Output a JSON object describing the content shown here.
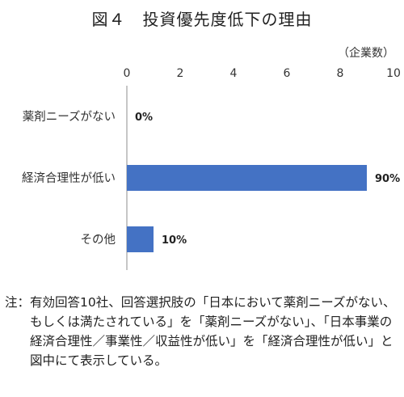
{
  "chart_data": {
    "type": "bar",
    "orientation": "horizontal",
    "title": "図４　投資優先度低下の理由",
    "unit_label": "（企業数）",
    "categories": [
      "薬剤ニーズがない",
      "経済合理性が低い",
      "その他"
    ],
    "values": [
      0,
      9,
      1
    ],
    "data_labels": [
      "0%",
      "90%",
      "10%"
    ],
    "xlim": [
      0,
      10
    ],
    "x_ticks": [
      0,
      2,
      4,
      6,
      8,
      10
    ],
    "x_tick_labels": [
      "0",
      "2",
      "4",
      "6",
      "8",
      "10"
    ],
    "bar_color": "#4472c4",
    "grid": false,
    "legend": "none"
  },
  "note": {
    "label": "注：",
    "text": "有効回答10社、回答選択肢の「日本において薬剤ニーズがない、もしくは満たされている」を「薬剤ニーズがない」、「日本事業の経済合理性／事業性／収益性が低い」を「経済合理性が低い」と図中にて表示している。"
  }
}
